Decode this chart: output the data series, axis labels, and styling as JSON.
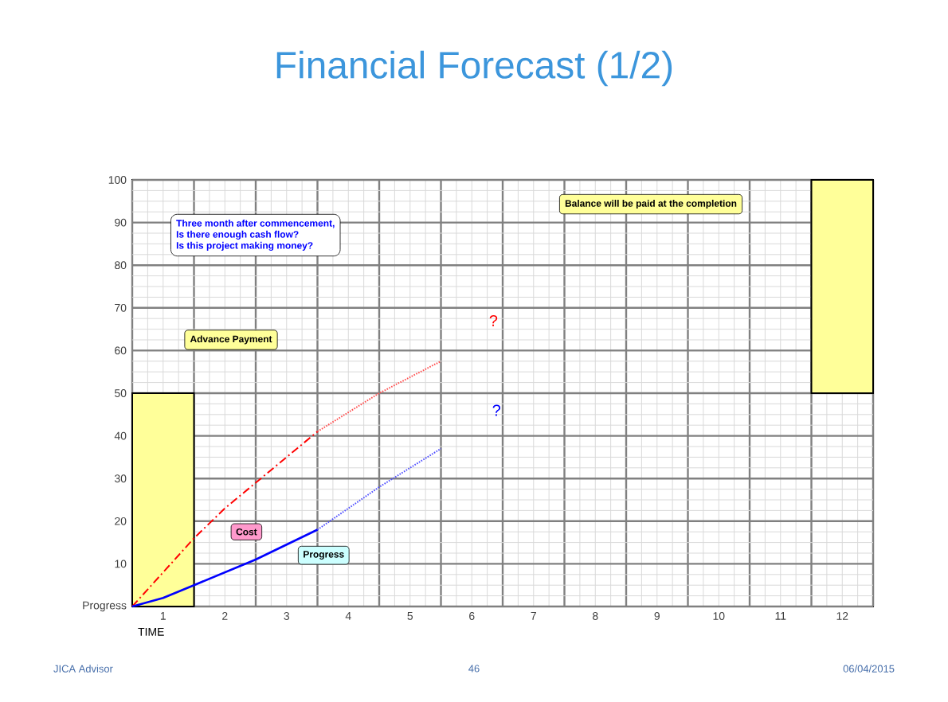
{
  "chart_data": {
    "type": "line",
    "title": "Financial Forecast (1/2)",
    "xlabel": "TIME",
    "xlim": [
      0,
      12
    ],
    "ylim": [
      0,
      100
    ],
    "xticks": [
      {
        "value": 0.5,
        "label": "1"
      },
      {
        "value": 1.5,
        "label": "2"
      },
      {
        "value": 2.5,
        "label": "3"
      },
      {
        "value": 3.5,
        "label": "4"
      },
      {
        "value": 4.5,
        "label": "5"
      },
      {
        "value": 5.5,
        "label": "6"
      },
      {
        "value": 6.5,
        "label": "7"
      },
      {
        "value": 7.5,
        "label": "8"
      },
      {
        "value": 8.5,
        "label": "9"
      },
      {
        "value": 9.5,
        "label": "10"
      },
      {
        "value": 10.5,
        "label": "11"
      },
      {
        "value": 11.5,
        "label": "12"
      }
    ],
    "yticks": [
      {
        "value": 0,
        "label": "Progress"
      },
      10,
      20,
      30,
      40,
      50,
      60,
      70,
      80,
      90,
      100
    ],
    "grid": true,
    "marker": "none",
    "series": [
      {
        "name": "Cost",
        "color": "#ff0000",
        "line_style": "dashed",
        "x": [
          0,
          0.5,
          1,
          1.5,
          2,
          2.5,
          3
        ],
        "values": [
          0,
          8,
          16,
          23,
          29,
          35,
          41
        ]
      },
      {
        "color": "#ff5050",
        "line_style": "dotted",
        "x": [
          3,
          4,
          5
        ],
        "values": [
          41,
          50,
          57.5
        ]
      },
      {
        "name": "Progress",
        "color": "#0000ff",
        "line_style": "solid",
        "x": [
          0,
          0.5,
          1,
          2,
          3
        ],
        "values": [
          0,
          2,
          5,
          11,
          18
        ]
      },
      {
        "color": "#5050ff",
        "line_style": "dotted",
        "x": [
          3,
          4,
          5
        ],
        "values": [
          18,
          28,
          37
        ]
      },
      {
        "type": "bar",
        "color": "#ffff99",
        "x": [
          0.5,
          11.5
        ],
        "base": [
          0,
          50
        ],
        "values": [
          50,
          50
        ]
      }
    ],
    "annotations": [
      "Three month after commencement,",
      "Is there enough cash flow?",
      "Is this project making money?",
      "Advance Payment",
      "Balance will be paid at the completion",
      "?",
      "?",
      "JICA Advisor",
      "46",
      "06/04/2015"
    ]
  }
}
